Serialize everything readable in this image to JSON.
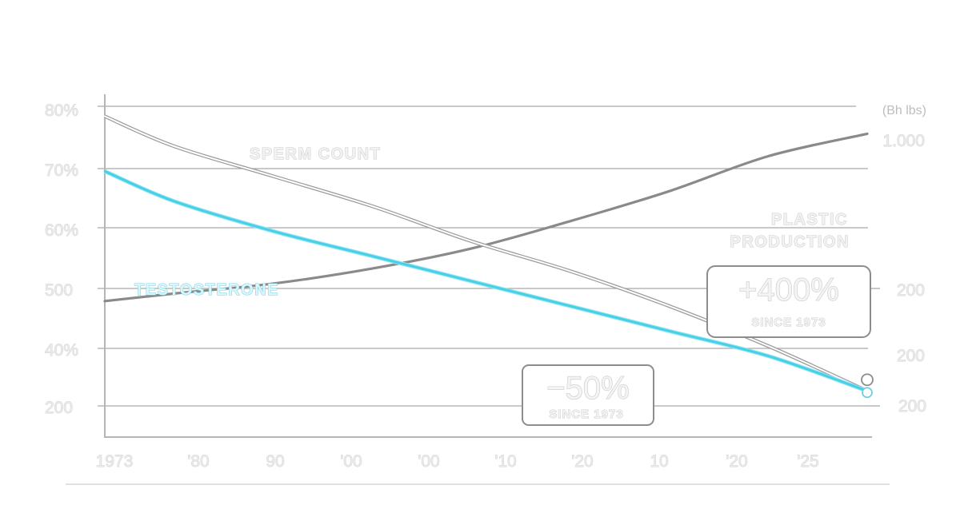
{
  "chart_data": {
    "type": "line",
    "left_axis_ticks": [
      "80%",
      "70%",
      "60%",
      "500",
      "40%",
      "200"
    ],
    "right_axis_unit": "(Bh lbs)",
    "right_axis_ticks": [
      "1.000",
      "200",
      "200",
      "200"
    ],
    "x_tick_labels": [
      "1973",
      "'80",
      "90",
      "'00",
      "'00",
      "'10",
      "'20",
      "10",
      "'20",
      "'25"
    ],
    "series": [
      {
        "name": "SPERM COUNT",
        "color": "#e6e6e6",
        "x": [
          1973,
          1980,
          1990,
          2000,
          2010,
          2020,
          2030,
          2040,
          2050
        ],
        "y": [
          78,
          72,
          66,
          60,
          53,
          47,
          40,
          32,
          23
        ]
      },
      {
        "name": "TESTOSTERONE",
        "color": "#45d0e8",
        "x": [
          1973,
          1980,
          1990,
          2000,
          2010,
          2020,
          2030,
          2040,
          2050
        ],
        "y": [
          67,
          61,
          55,
          50,
          45,
          40,
          35,
          30,
          23
        ]
      },
      {
        "name": "PLASTIC PRODUCTION",
        "color": "#8a8a8a",
        "x": [
          1973,
          1980,
          1990,
          2000,
          2010,
          2020,
          2030,
          2040,
          2050
        ],
        "y": [
          41,
          42.5,
          44.5,
          47.5,
          51.5,
          57,
          63,
          70,
          74.5
        ]
      }
    ],
    "series_labels": {
      "sperm": "SPERM COUNT",
      "testosterone": "TESTOSTERONE",
      "plastic_line1": "PLASTIC",
      "plastic_line2": "PRODUCTION"
    },
    "callouts": {
      "plastic": {
        "value": "+400%",
        "caption": "SINCE 1973"
      },
      "decline": {
        "value": "−50%",
        "caption": "SINCE 1973"
      }
    },
    "grid": true,
    "colors": {
      "testosterone": "#45d0e8",
      "plastic": "#8a8a8a",
      "sperm": "#e6e6e6",
      "grid": "#a9a9a9"
    }
  }
}
